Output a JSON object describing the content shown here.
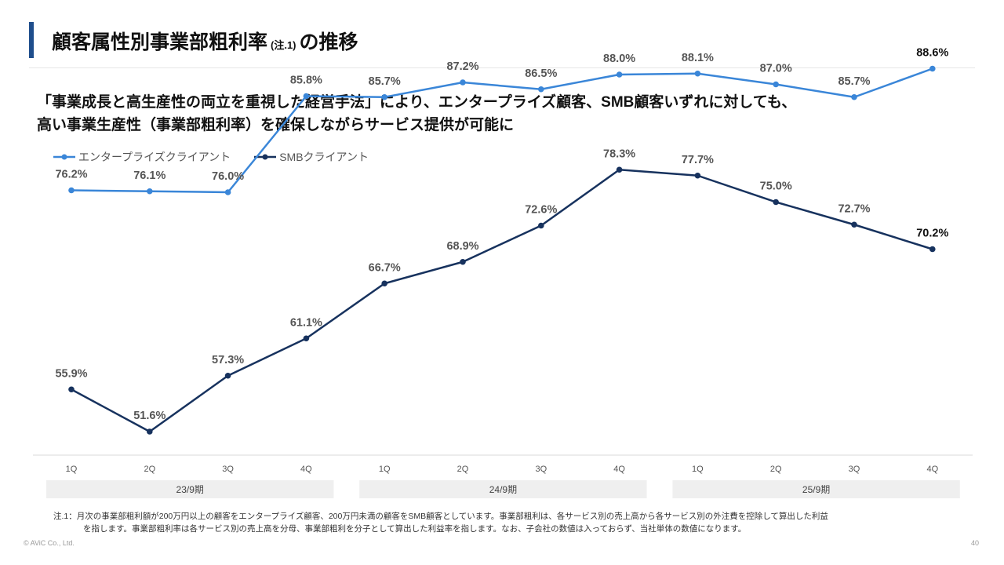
{
  "title": {
    "main": "顧客属性別事業部粗利率",
    "note": "(注.1)",
    "suffix": "の推移"
  },
  "lead": {
    "line1": "「事業成長と高生産性の両立を重視した経営手法」により、エンタープライズ顧客、SMB顧客いずれに対しても、",
    "line2": "高い事業生産性（事業部粗利率）を確保しながらサービス提供が可能に"
  },
  "chart_data": {
    "type": "line",
    "categories": [
      "1Q",
      "2Q",
      "3Q",
      "4Q",
      "1Q",
      "2Q",
      "3Q",
      "4Q",
      "1Q",
      "2Q",
      "3Q",
      "4Q"
    ],
    "groups": [
      {
        "label": "23/9期",
        "start": 0,
        "end": 3
      },
      {
        "label": "24/9期",
        "start": 4,
        "end": 7
      },
      {
        "label": "25/9期",
        "start": 8,
        "end": 11
      }
    ],
    "ylim": [
      0,
      100
    ],
    "grid": false,
    "legend_position": "top-left",
    "series": [
      {
        "name": "エンタープライズクライアント",
        "color": "#3a86d8",
        "values": [
          76.2,
          76.1,
          76.0,
          85.8,
          85.7,
          87.2,
          86.5,
          88.0,
          88.1,
          87.0,
          85.7,
          88.6
        ],
        "labels": [
          "76.2%",
          "76.1%",
          "76.0%",
          "85.8%",
          "85.7%",
          "87.2%",
          "86.5%",
          "88.0%",
          "88.1%",
          "87.0%",
          "85.7%",
          "88.6%"
        ]
      },
      {
        "name": "SMBクライアント",
        "color": "#17325e",
        "values": [
          55.9,
          51.6,
          57.3,
          61.1,
          66.7,
          68.9,
          72.6,
          78.3,
          77.7,
          75.0,
          72.7,
          70.2
        ],
        "labels": [
          "55.9%",
          "51.6%",
          "57.3%",
          "61.1%",
          "66.7%",
          "68.9%",
          "72.6%",
          "78.3%",
          "77.7%",
          "75.0%",
          "72.7%",
          "70.2%"
        ]
      }
    ]
  },
  "note": {
    "line1": "注.1：月次の事業部粗利額が200万円以上の顧客をエンタープライズ顧客、200万円未満の顧客をSMB顧客としています。事業部粗利は、各サービス別の売上高から各サービス別の外注費を控除して算出した利益",
    "line2": "を指します。事業部粗利率は各サービス別の売上高を分母、事業部粗利を分子として算出した利益率を指します。なお、子会社の数値は入っておらず、当社単体の数値になります。"
  },
  "footer": {
    "copyright": "© AViC Co., Ltd.",
    "page": "40"
  }
}
